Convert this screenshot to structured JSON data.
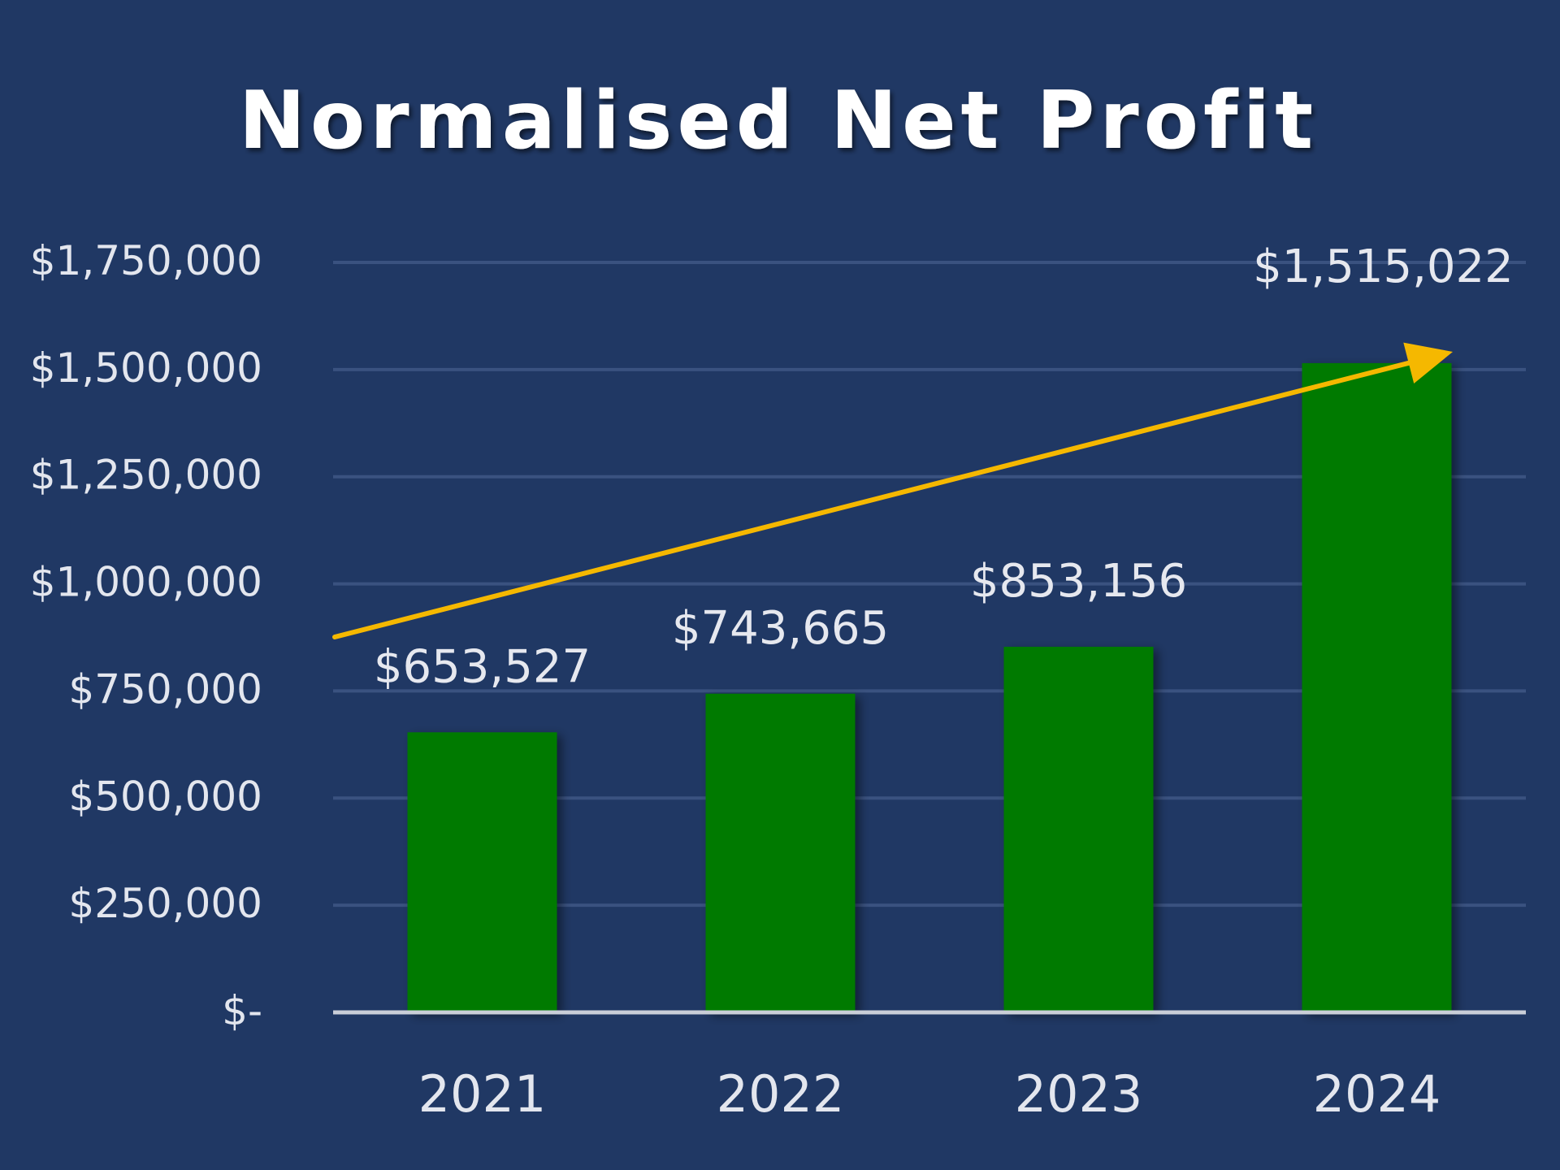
{
  "chart_data": {
    "type": "bar",
    "title": "Normalised Net Profit",
    "categories": [
      "2021",
      "2022",
      "2023",
      "2024"
    ],
    "values": [
      653527,
      743665,
      853156,
      1515022
    ],
    "data_labels": [
      "$653,527",
      "$743,665",
      "$853,156",
      "$1,515,022"
    ],
    "ylim": [
      0,
      1750000
    ],
    "y_ticks": [
      0,
      250000,
      500000,
      750000,
      1000000,
      1250000,
      1500000,
      1750000
    ],
    "y_tick_labels": [
      "$-",
      "$250,000",
      "$500,000",
      "$750,000",
      "$1,000,000",
      "$1,250,000",
      "$1,500,000",
      "$1,750,000"
    ],
    "grid": true,
    "legend": "none",
    "trend_arrow": true,
    "colors": {
      "background": "#203864",
      "bar": "#007a00",
      "gridline": "#3a5280",
      "baseline": "#c9ced8",
      "arrow": "#f5b800",
      "title": "#ffffff",
      "labels": "#e3e6ee"
    }
  }
}
